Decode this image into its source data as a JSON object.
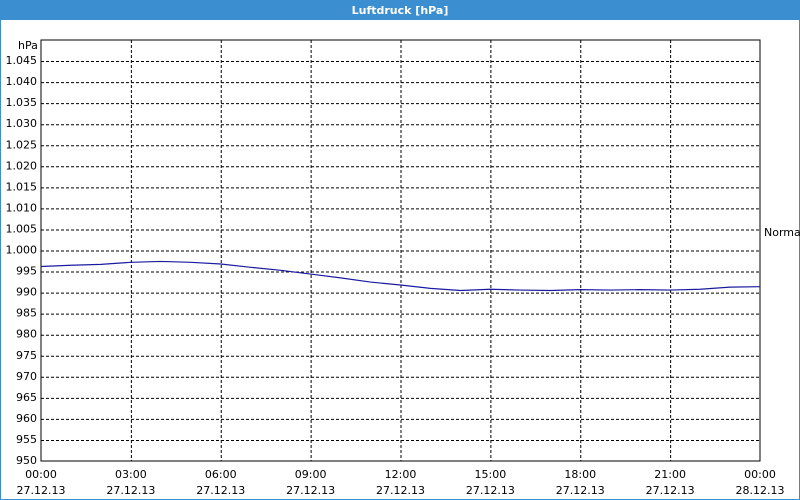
{
  "chart_data": {
    "type": "line",
    "title": "Luftdruck [hPa]",
    "y_unit": "hPa",
    "annotation": "Normal",
    "x": [
      0,
      1,
      2,
      3,
      4,
      5,
      6,
      7,
      8,
      9,
      10,
      11,
      12,
      13,
      14,
      15,
      16,
      17,
      18,
      19,
      20,
      21,
      22,
      23,
      24
    ],
    "series": [
      {
        "color": "#1a1aa0",
        "values": [
          996.2,
          996.5,
          996.7,
          997.2,
          997.4,
          997.2,
          996.8,
          996.0,
          995.3,
          994.4,
          993.5,
          992.5,
          991.8,
          991.0,
          990.5,
          990.8,
          990.6,
          990.5,
          990.7,
          990.6,
          990.7,
          990.6,
          990.8,
          991.3,
          991.4
        ]
      }
    ],
    "xlim": [
      0,
      24
    ],
    "xticks": [
      {
        "value": 0,
        "label": "00:00",
        "date": "27.12.13"
      },
      {
        "value": 3,
        "label": "03:00",
        "date": "27.12.13"
      },
      {
        "value": 6,
        "label": "06:00",
        "date": "27.12.13"
      },
      {
        "value": 9,
        "label": "09:00",
        "date": "27.12.13"
      },
      {
        "value": 12,
        "label": "12:00",
        "date": "27.12.13"
      },
      {
        "value": 15,
        "label": "15:00",
        "date": "27.12.13"
      },
      {
        "value": 18,
        "label": "18:00",
        "date": "27.12.13"
      },
      {
        "value": 21,
        "label": "21:00",
        "date": "27.12.13"
      },
      {
        "value": 24,
        "label": "00:00",
        "date": "28.12.13"
      }
    ],
    "ylim": [
      950,
      1050
    ],
    "yticks": [
      950,
      955,
      960,
      965,
      970,
      975,
      980,
      985,
      990,
      995,
      {
        "value": 1000,
        "label": "1.000"
      },
      {
        "value": 1005,
        "label": "1.005"
      },
      {
        "value": 1010,
        "label": "1.010"
      },
      {
        "value": 1015,
        "label": "1.015"
      },
      {
        "value": 1020,
        "label": "1.020"
      },
      {
        "value": 1025,
        "label": "1.025"
      },
      {
        "value": 1030,
        "label": "1.030"
      },
      {
        "value": 1035,
        "label": "1.035"
      },
      {
        "value": 1040,
        "label": "1.040"
      },
      {
        "value": 1045,
        "label": "1.045"
      }
    ],
    "grid": true
  }
}
